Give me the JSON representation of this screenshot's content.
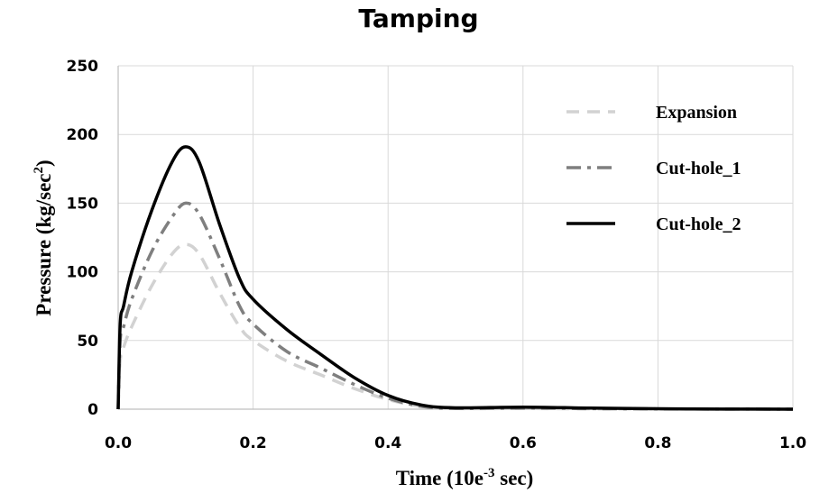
{
  "chart_data": {
    "type": "line",
    "title": "Tamping",
    "xlabel": "Time (10e",
    "xlabel_sup": "-3",
    "xlabel_tail": " sec)",
    "ylabel": "Pressure (kg/sec",
    "ylabel_sup": "2",
    "ylabel_tail": ")",
    "xlim": [
      0,
      1.0
    ],
    "ylim": [
      0,
      250
    ],
    "x_ticks": [
      0,
      0.2,
      0.4,
      0.6,
      0.8,
      1.0
    ],
    "x_tick_labels": [
      "0.0",
      "0.2",
      "0.4",
      "0.6",
      "0.8",
      "1.0"
    ],
    "y_ticks": [
      0,
      50,
      100,
      150,
      200,
      250
    ],
    "y_tick_labels": [
      "0",
      "50",
      "100",
      "150",
      "200",
      "250"
    ],
    "grid": true,
    "legend_position": "top-right",
    "series": [
      {
        "name": "Expansion",
        "color": "#d2d2d2",
        "style": "dashed",
        "x": [
          0,
          0.003,
          0.008,
          0.02,
          0.05,
          0.08,
          0.1,
          0.12,
          0.15,
          0.18,
          0.2,
          0.25,
          0.3,
          0.35,
          0.4,
          0.45,
          0.5,
          0.6,
          0.7,
          0.8,
          0.9,
          1.0
        ],
        "y": [
          0,
          35,
          45,
          60,
          90,
          113,
          120,
          113,
          85,
          60,
          50,
          35,
          25,
          15,
          7,
          2,
          0.5,
          0.5,
          0.3,
          0.2,
          0.1,
          0
        ]
      },
      {
        "name": "Cut-hole_1",
        "color": "#7f7f7f",
        "style": "dash-dot",
        "x": [
          0,
          0.003,
          0.008,
          0.02,
          0.05,
          0.08,
          0.1,
          0.12,
          0.15,
          0.18,
          0.2,
          0.25,
          0.3,
          0.35,
          0.4,
          0.45,
          0.5,
          0.6,
          0.7,
          0.8,
          0.9,
          1.0
        ],
        "y": [
          0,
          50,
          60,
          80,
          115,
          140,
          150,
          142,
          110,
          75,
          62,
          42,
          30,
          18,
          8,
          2,
          0.5,
          0.8,
          0.4,
          0.2,
          0.1,
          0
        ]
      },
      {
        "name": "Cut-hole_2",
        "color": "#000000",
        "style": "solid",
        "x": [
          0,
          0.003,
          0.008,
          0.02,
          0.05,
          0.08,
          0.1,
          0.12,
          0.15,
          0.18,
          0.2,
          0.25,
          0.3,
          0.35,
          0.4,
          0.45,
          0.5,
          0.6,
          0.7,
          0.8,
          0.9,
          1.0
        ],
        "y": [
          0,
          62,
          75,
          100,
          145,
          180,
          191,
          180,
          135,
          95,
          80,
          58,
          40,
          23,
          10,
          3,
          1,
          1.5,
          0.8,
          0.3,
          0.1,
          0
        ]
      }
    ]
  }
}
